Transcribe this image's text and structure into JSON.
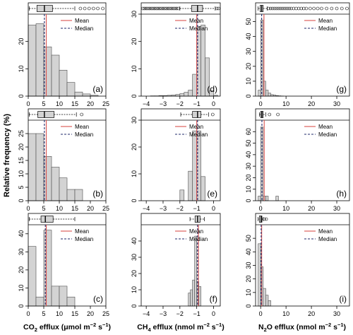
{
  "figure": {
    "ylabel": "Relative frequency (%)",
    "col_xlabels": [
      {
        "pre": "CO",
        "sub": "2",
        "post": " efflux (μmol m",
        "sup1": "−2",
        "mid": " s",
        "sup2": "−1",
        "end": ")"
      },
      {
        "pre": "CH",
        "sub": "4",
        "post": " efflux (nmol m",
        "sup1": "−2",
        "mid": " s",
        "sup2": "−1",
        "end": ")"
      },
      {
        "pre": "N",
        "sub": "2",
        "post": "O efflux (nmol m",
        "sup1": "−2",
        "mid": " s",
        "sup2": "−1",
        "end": ")"
      }
    ],
    "legend": {
      "mean": "Mean",
      "median": "Median"
    },
    "colors": {
      "bar_fill": "#d3d3d3",
      "bar_stroke": "#4d4d4d",
      "mean": "#d9534f",
      "median": "#1f2a6b",
      "axis": "#000000"
    }
  },
  "chart_data": [
    {
      "panel": "(a)",
      "type": "bar",
      "xlim": [
        0,
        25
      ],
      "ylim": [
        0,
        30
      ],
      "xticks": [
        0,
        5,
        10,
        15,
        20,
        25
      ],
      "yticks": [
        0,
        10,
        20
      ],
      "bin_start": 0,
      "bin_width": 2.5,
      "values": [
        26,
        26.5,
        18,
        15,
        9.5,
        5,
        1.5,
        0.8,
        0.3,
        0
      ],
      "mean": 5.8,
      "median": 5.2,
      "box": {
        "whisker_low": 0.3,
        "q1": 2.8,
        "q3": 7.8,
        "whisker_high": 15.0,
        "outliers": [
          16.8,
          18.2,
          19.6,
          21.0,
          22.4,
          24.0
        ]
      }
    },
    {
      "panel": "(d)",
      "type": "bar",
      "xlim": [
        -4.3,
        0.4
      ],
      "ylim": [
        0,
        30
      ],
      "xticks": [
        -4,
        -3,
        -2,
        -1,
        0
      ],
      "yticks": [
        0,
        10,
        20,
        30
      ],
      "bin_start": -4.25,
      "bin_width": 0.25,
      "values": [
        0,
        0,
        0.1,
        0.1,
        0.2,
        0.2,
        0.3,
        0.4,
        0.6,
        0.9,
        1.4,
        2.2,
        8,
        25.5,
        26,
        14,
        2,
        0.3,
        0
      ],
      "mean": -1.0,
      "median": -0.95,
      "box": {
        "whisker_low": -2.0,
        "q1": -1.3,
        "q3": -0.65,
        "whisker_high": 0.1,
        "outliers": [
          -4.2,
          -4.1,
          -4.0,
          -3.9,
          -3.8,
          -3.7,
          -3.6,
          -3.5,
          -3.4,
          -3.3,
          -3.2,
          -3.1,
          -3.0,
          -2.9,
          -2.8,
          -2.7,
          -2.6,
          -2.5,
          -2.4,
          -2.3,
          -2.2,
          -2.1,
          0.2,
          0.3
        ]
      }
    },
    {
      "panel": "(g)",
      "type": "bar",
      "xlim": [
        -2,
        35
      ],
      "ylim": [
        0,
        55
      ],
      "xticks": [
        0,
        10,
        20,
        30
      ],
      "yticks": [
        0,
        10,
        20,
        30,
        40,
        50
      ],
      "bin_start": -1,
      "bin_width": 1,
      "values": [
        4,
        51,
        10,
        4,
        2,
        1,
        0.7,
        0.4,
        0.2,
        0.1,
        0,
        0
      ],
      "mean": 1.3,
      "median": 0.4,
      "box": {
        "whisker_low": -1.0,
        "q1": -0.2,
        "q3": 1.0,
        "whisker_high": 2.6,
        "outliers": [
          3.2,
          4.0,
          4.8,
          5.6,
          6.4,
          7.2,
          8.0,
          8.8,
          9.6,
          10.4,
          11.2,
          12.0,
          13.0,
          14.0,
          15.0,
          16.0,
          17.0,
          18.0,
          19.5,
          21.0,
          22.5,
          24.0,
          26.0,
          28.0,
          30.0,
          32.0,
          34.0
        ]
      }
    },
    {
      "panel": "(b)",
      "type": "bar",
      "xlim": [
        0,
        25
      ],
      "ylim": [
        0,
        30
      ],
      "xticks": [
        0,
        5,
        10,
        15,
        20,
        25
      ],
      "yticks": [
        0,
        5,
        10,
        15,
        20,
        25
      ],
      "bin_start": 0,
      "bin_width": 2.5,
      "values": [
        25,
        25,
        16.5,
        12.5,
        8.5,
        4.2,
        4.2,
        0
      ],
      "mean": 5.8,
      "median": 5.2,
      "box": {
        "whisker_low": 0.3,
        "q1": 3.1,
        "q3": 8.3,
        "whisker_high": 15.5,
        "outliers": [
          17.2
        ]
      }
    },
    {
      "panel": "(e)",
      "type": "bar",
      "xlim": [
        -4.3,
        0.4
      ],
      "ylim": [
        0,
        30
      ],
      "xticks": [
        -4,
        -3,
        -2,
        -1,
        0
      ],
      "yticks": [
        0,
        10,
        20,
        30
      ],
      "bin_start": -2.0,
      "bin_width": 0.25,
      "values": [
        4,
        0,
        11,
        26,
        26,
        9,
        0
      ],
      "mean": -1.0,
      "median": -0.95,
      "box": {
        "whisker_low": -1.95,
        "q1": -1.25,
        "q3": -0.75,
        "whisker_high": -0.3,
        "outliers": [
          -0.05
        ]
      }
    },
    {
      "panel": "(h)",
      "type": "bar",
      "xlim": [
        -2,
        35
      ],
      "ylim": [
        0,
        70
      ],
      "xticks": [
        0,
        10,
        20,
        30
      ],
      "yticks": [
        0,
        10,
        20,
        30,
        40,
        50,
        60
      ],
      "bin_start": -1,
      "bin_width": 1,
      "values": [
        4,
        64,
        4,
        4,
        0,
        0,
        0,
        4,
        0
      ],
      "mean": 1.4,
      "median": 0.5,
      "box": {
        "whisker_low": -0.5,
        "q1": 0.0,
        "q3": 1.0,
        "whisker_high": 2.0,
        "outliers": [
          3.5,
          6.8
        ]
      }
    },
    {
      "panel": "(c)",
      "type": "bar",
      "xlim": [
        0,
        25
      ],
      "ylim": [
        0,
        45
      ],
      "xticks": [
        0,
        5,
        10,
        15,
        20,
        25
      ],
      "yticks": [
        0,
        10,
        20,
        30,
        40
      ],
      "bin_start": 0,
      "bin_width": 2.5,
      "values": [
        33,
        5,
        42,
        11,
        11,
        5,
        0
      ],
      "mean": 5.8,
      "median": 5.5,
      "box": {
        "whisker_low": 0.3,
        "q1": 4.1,
        "q3": 8.0,
        "whisker_high": 15.0,
        "outliers": []
      }
    },
    {
      "panel": "(f)",
      "type": "bar",
      "xlim": [
        -4.3,
        0.4
      ],
      "ylim": [
        0,
        50
      ],
      "xticks": [
        -4,
        -3,
        -2,
        -1,
        0
      ],
      "yticks": [
        0,
        10,
        20,
        30,
        40
      ],
      "bin_start": -1.5,
      "bin_width": 0.125,
      "values": [
        8,
        10,
        16,
        43,
        15,
        12,
        0
      ],
      "mean": -0.9,
      "median": -0.95,
      "box": {
        "whisker_low": -1.4,
        "q1": -1.1,
        "q3": -0.8,
        "whisker_high": -0.55,
        "outliers": []
      }
    },
    {
      "panel": "(i)",
      "type": "bar",
      "xlim": [
        -2,
        35
      ],
      "ylim": [
        0,
        60
      ],
      "xticks": [
        0,
        10,
        20,
        30
      ],
      "yticks": [
        0,
        10,
        20,
        30,
        40,
        50
      ],
      "bin_start": -1,
      "bin_width": 1,
      "values": [
        46,
        29,
        13,
        8,
        4,
        0
      ],
      "mean": 0.4,
      "median": 0.2,
      "box": {
        "whisker_low": -1.0,
        "q1": -0.5,
        "q3": 0.5,
        "whisker_high": 1.0,
        "outliers": [
          1.4,
          2.2
        ]
      }
    }
  ]
}
